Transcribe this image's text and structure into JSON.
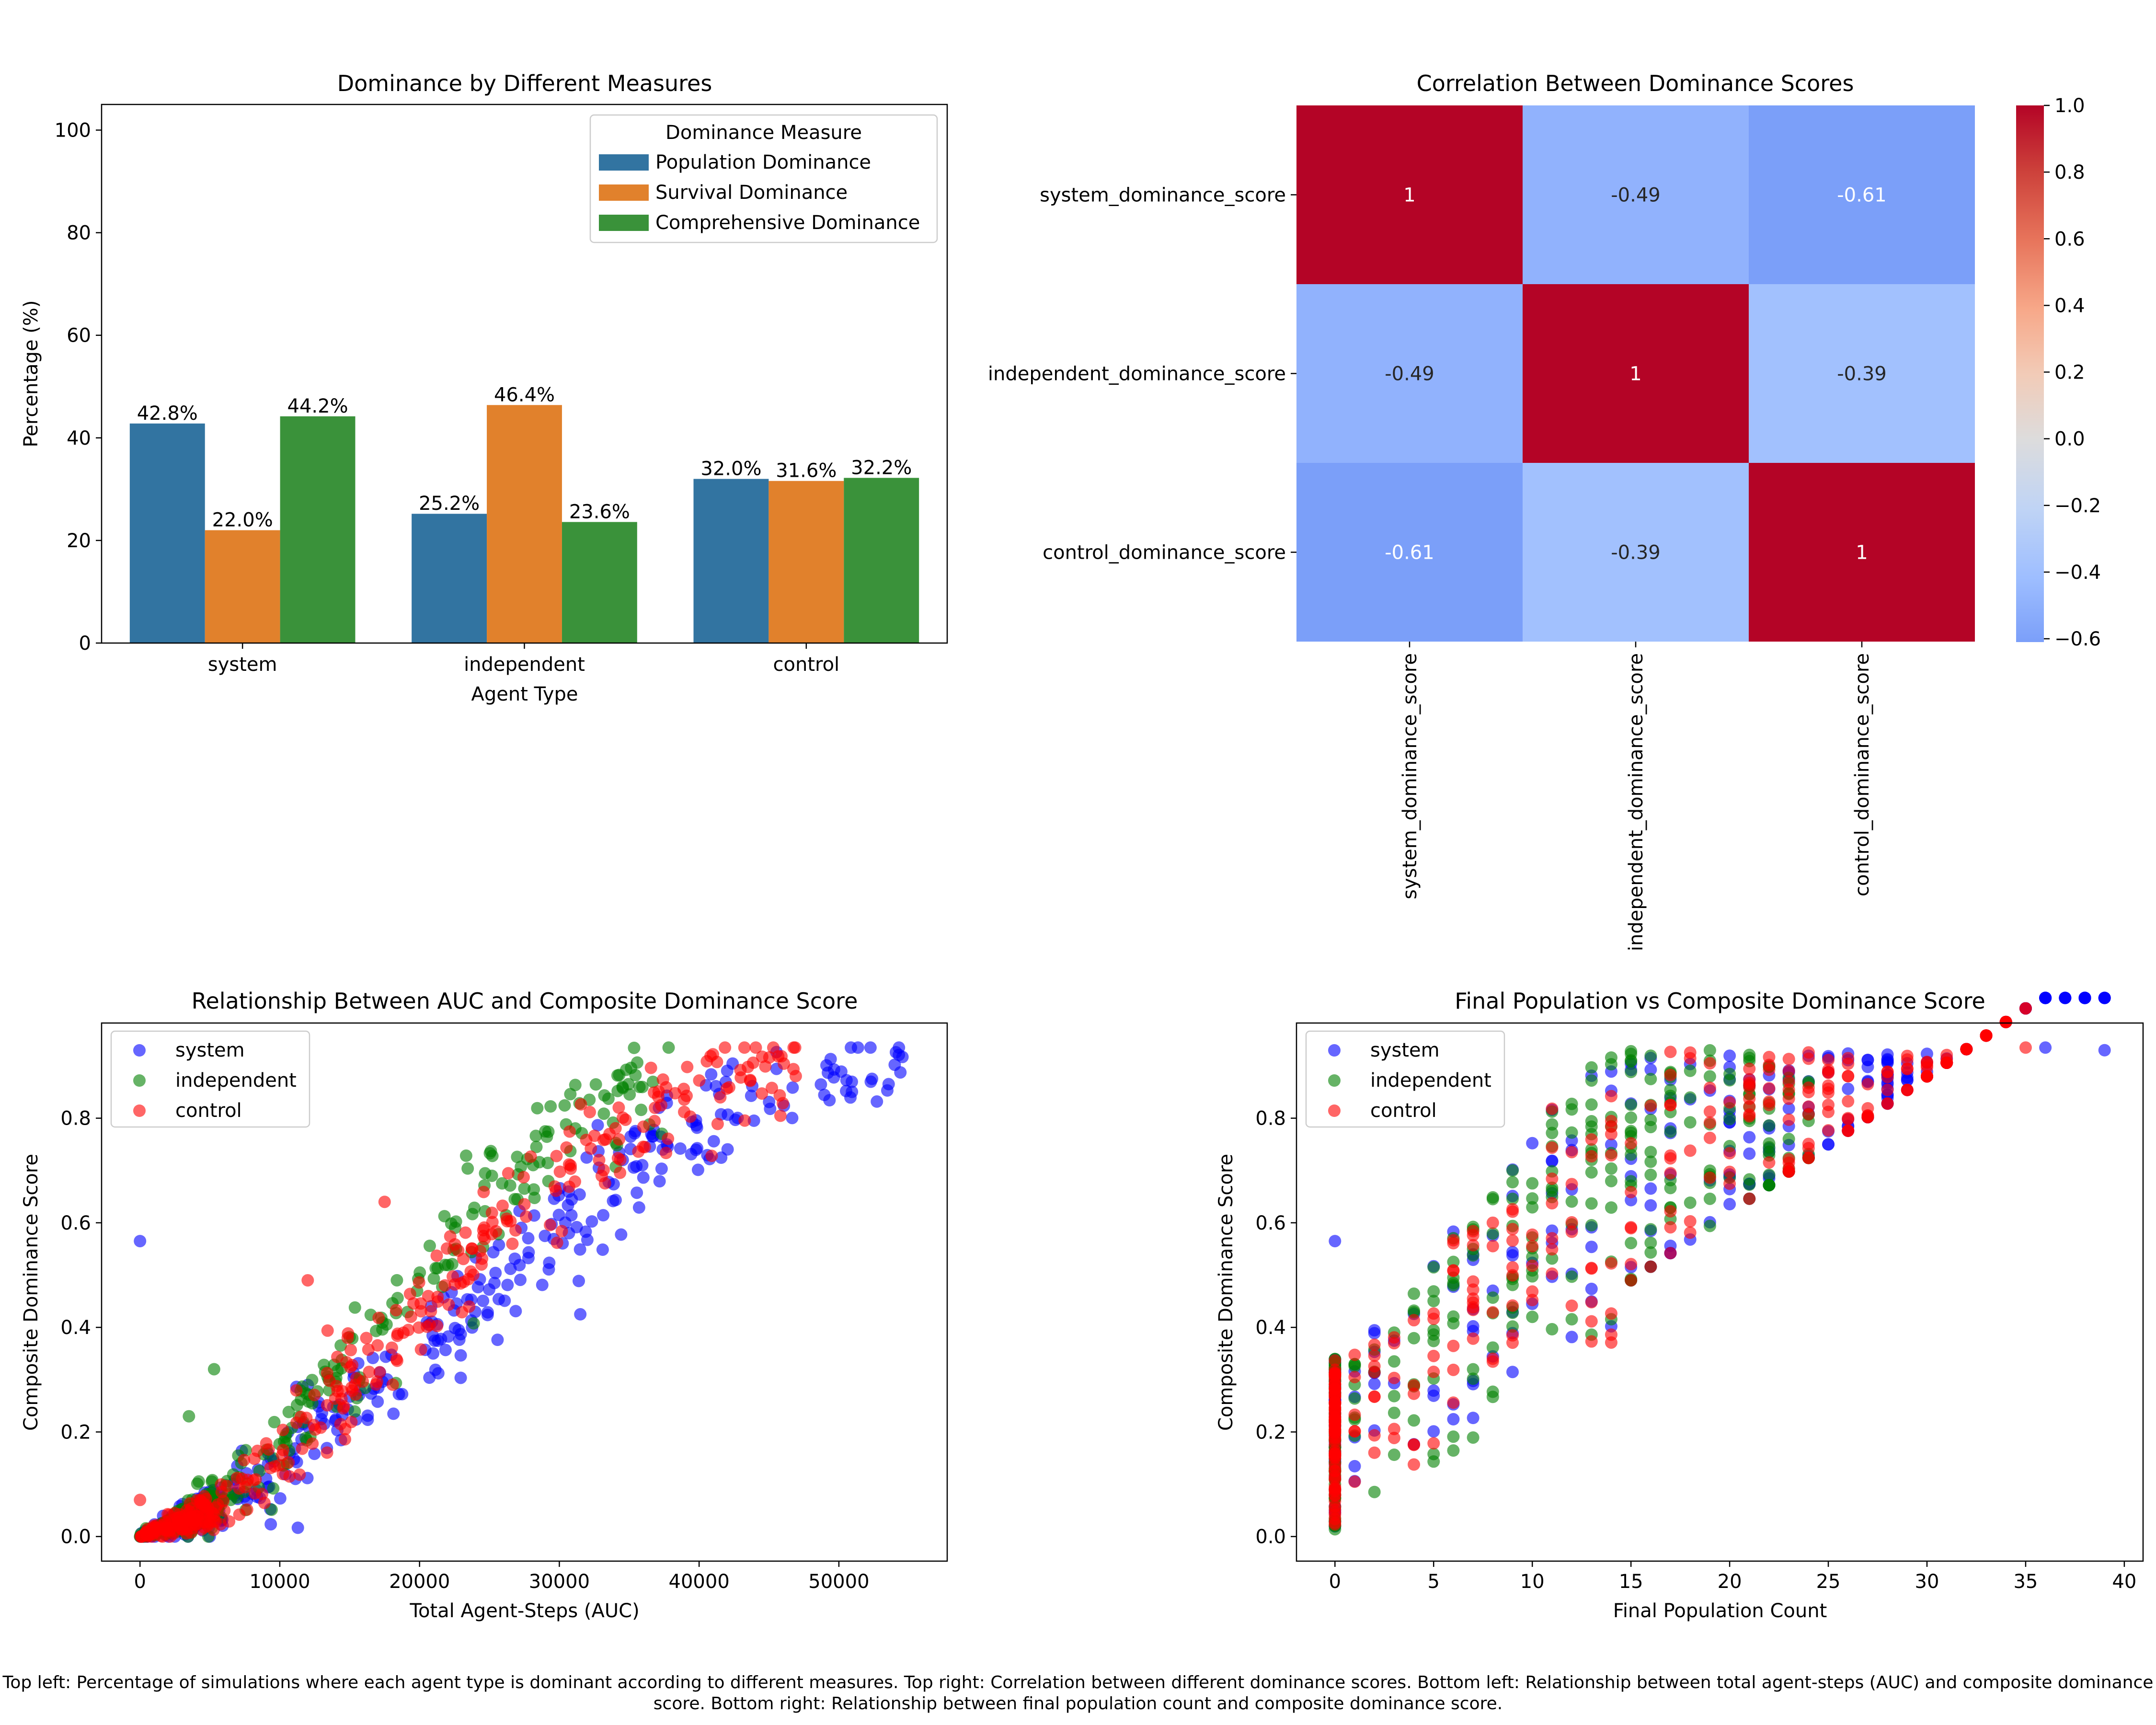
{
  "caption": "Top left: Percentage of simulations where each agent type is dominant according to different measures. Top right: Correlation between different dominance scores. Bottom left: Relationship between total agent-steps (AUC) and composite dominance score. Bottom right: Relationship between final population count and composite dominance score.",
  "colors": {
    "population": "#3274a1",
    "survival": "#e1812c",
    "comprehensive": "#3a923a",
    "system": "#0000ff",
    "independent": "#008000",
    "control": "#ff0000"
  },
  "chart_data": [
    {
      "type": "bar",
      "title": "Dominance by Different Measures",
      "xlabel": "Agent Type",
      "ylabel": "Percentage (%)",
      "ylim": [
        0,
        105
      ],
      "yticks": [
        0,
        20,
        40,
        60,
        80,
        100
      ],
      "categories": [
        "system",
        "independent",
        "control"
      ],
      "legend_title": "Dominance Measure",
      "legend_position": "upper right",
      "series": [
        {
          "name": "Population Dominance",
          "values": [
            42.8,
            25.2,
            32.0
          ],
          "labels": [
            "42.8%",
            "25.2%",
            "32.0%"
          ]
        },
        {
          "name": "Survival Dominance",
          "values": [
            22.0,
            46.4,
            31.6
          ],
          "labels": [
            "22.0%",
            "46.4%",
            "31.6%"
          ]
        },
        {
          "name": "Comprehensive Dominance",
          "values": [
            44.2,
            23.6,
            32.2
          ],
          "labels": [
            "44.2%",
            "23.6%",
            "32.2%"
          ]
        }
      ]
    },
    {
      "type": "heatmap",
      "title": "Correlation Between Dominance Scores",
      "rows": [
        "system_dominance_score",
        "independent_dominance_score",
        "control_dominance_score"
      ],
      "cols": [
        "system_dominance_score",
        "independent_dominance_score",
        "control_dominance_score"
      ],
      "values": [
        [
          1,
          -0.49,
          -0.61
        ],
        [
          -0.49,
          1,
          -0.39
        ],
        [
          -0.61,
          -0.39,
          1
        ]
      ],
      "labels": [
        [
          "1",
          "-0.49",
          "-0.61"
        ],
        [
          "-0.49",
          "1",
          "-0.39"
        ],
        [
          "-0.61",
          "-0.39",
          "1"
        ]
      ],
      "colormap": "coolwarm",
      "vmin": -0.61,
      "vmax": 1.0,
      "colorbar_ticks": [
        -0.6,
        -0.4,
        -0.2,
        0.0,
        0.2,
        0.4,
        0.6,
        0.8,
        1.0
      ],
      "colorbar_labels": [
        "−0.6",
        "−0.4",
        "−0.2",
        "0.0",
        "0.2",
        "0.4",
        "0.6",
        "0.8",
        "1.0"
      ]
    },
    {
      "type": "scatter",
      "title": "Relationship Between AUC and Composite Dominance Score",
      "xlabel": "Total Agent-Steps (AUC)",
      "ylabel": "Composite Dominance Score",
      "xlim": [
        -2750,
        57750
      ],
      "ylim": [
        -0.047,
        0.982
      ],
      "xticks": [
        0,
        10000,
        20000,
        30000,
        40000,
        50000
      ],
      "yticks": [
        0.0,
        0.2,
        0.4,
        0.6,
        0.8
      ],
      "legend_position": "upper left",
      "series": [
        {
          "name": "system",
          "trend": [
            [
              0,
              0
            ],
            [
              5000,
              0.05
            ],
            [
              10000,
              0.13
            ],
            [
              15000,
              0.23
            ],
            [
              20000,
              0.35
            ],
            [
              25000,
              0.47
            ],
            [
              30000,
              0.6
            ],
            [
              35000,
              0.72
            ],
            [
              40000,
              0.8
            ],
            [
              45000,
              0.85
            ],
            [
              50000,
              0.89
            ],
            [
              55000,
              0.9
            ]
          ],
          "xmax": 55000,
          "noise": 0.05,
          "n": 420
        },
        {
          "name": "independent",
          "trend": [
            [
              0,
              0
            ],
            [
              5000,
              0.06
            ],
            [
              10000,
              0.18
            ],
            [
              15000,
              0.33
            ],
            [
              20000,
              0.5
            ],
            [
              25000,
              0.63
            ],
            [
              30000,
              0.76
            ],
            [
              35000,
              0.86
            ],
            [
              38000,
              0.9
            ]
          ],
          "xmax": 38000,
          "noise": 0.05,
          "n": 300
        },
        {
          "name": "control",
          "trend": [
            [
              0,
              0
            ],
            [
              5000,
              0.05
            ],
            [
              10000,
              0.15
            ],
            [
              15000,
              0.28
            ],
            [
              20000,
              0.42
            ],
            [
              25000,
              0.56
            ],
            [
              30000,
              0.68
            ],
            [
              35000,
              0.79
            ],
            [
              40000,
              0.86
            ],
            [
              45000,
              0.9
            ],
            [
              47000,
              0.92
            ]
          ],
          "xmax": 47000,
          "noise": 0.05,
          "n": 380
        }
      ],
      "outliers": [
        {
          "series": "system",
          "x": 0,
          "y": 0.565
        },
        {
          "series": "system",
          "x": 31500,
          "y": 0.425
        },
        {
          "series": "independent",
          "x": 3500,
          "y": 0.23
        },
        {
          "series": "independent",
          "x": 5300,
          "y": 0.32
        },
        {
          "series": "control",
          "x": 0,
          "y": 0.07
        },
        {
          "series": "control",
          "x": 12000,
          "y": 0.49
        },
        {
          "series": "control",
          "x": 17500,
          "y": 0.64
        }
      ]
    },
    {
      "type": "scatter",
      "title": "Final Population vs Composite Dominance Score",
      "xlabel": "Final Population Count",
      "ylabel": "Composite Dominance Score",
      "xlim": [
        -1.95,
        40.95
      ],
      "ylim": [
        -0.047,
        0.982
      ],
      "xticks": [
        0,
        5,
        10,
        15,
        20,
        25,
        30,
        35,
        40
      ],
      "yticks": [
        0.0,
        0.2,
        0.4,
        0.6,
        0.8
      ],
      "legend_position": "upper left",
      "series": [
        {
          "name": "system",
          "xmax": 39,
          "n": 330
        },
        {
          "name": "independent",
          "xmax": 24,
          "n": 300
        },
        {
          "name": "control",
          "xmax": 35,
          "n": 340
        }
      ]
    }
  ]
}
